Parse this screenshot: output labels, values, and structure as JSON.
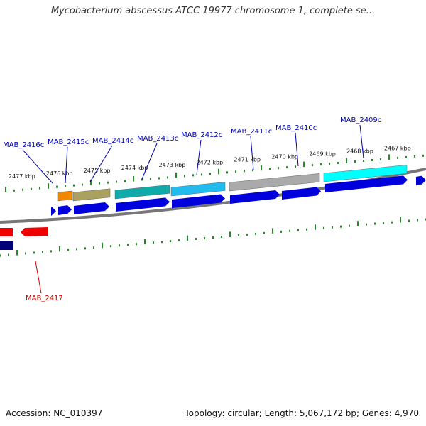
{
  "title": "Mycobacterium abscessus ATCC 19977 chromosome 1, complete se...",
  "footer": {
    "accession": "Accession: NC_010397",
    "stats": "Topology: circular; Length: 5,067,172 bp; Genes: 4,970"
  },
  "colors": {
    "backbone": "#777777",
    "ticks": "#228b22",
    "cds": "#0000dd",
    "label_top": "#0000aa",
    "label_bottom": "#cc0000",
    "reverse_gene": "#ee0000",
    "dark_gene": "#000077"
  },
  "kbp_labels": [
    "2477 kbp",
    "2476 kbp",
    "2475 kbp",
    "2474 kbp",
    "2473 kbp",
    "2472 kbp",
    "2471 kbp",
    "2470 kbp",
    "2469 kbp",
    "2468 kbp",
    "2467 kbp"
  ],
  "top_genes": [
    {
      "name": "MAB_2416c",
      "fill": "#ee8800"
    },
    {
      "name": "MAB_2415c",
      "fill": "#aaa060"
    },
    {
      "name": "MAB_2414c",
      "fill": "#aaa060"
    },
    {
      "name": "MAB_2413c",
      "fill": "#11aaaa"
    },
    {
      "name": "MAB_2412c",
      "fill": "#22bbee"
    },
    {
      "name": "MAB_2411c",
      "fill": "#aaaaaa"
    },
    {
      "name": "MAB_2410c",
      "fill": "#aaaaaa"
    },
    {
      "name": "MAB_2409c",
      "fill": "#00ffff"
    }
  ],
  "bottom_genes": [
    {
      "name": "MAB_2417"
    }
  ]
}
